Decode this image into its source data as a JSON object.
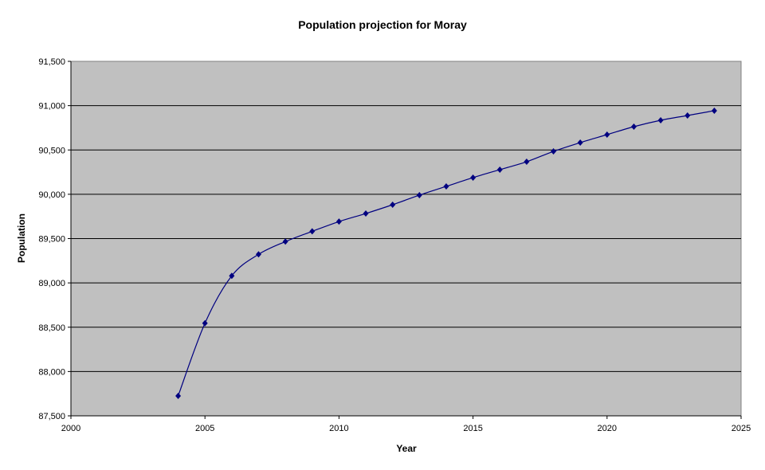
{
  "chart_data": {
    "type": "line",
    "title": "Population projection for Moray",
    "xlabel": "Year",
    "ylabel": "Population",
    "xlim": [
      2000,
      2025
    ],
    "ylim": [
      87500,
      91500
    ],
    "x_ticks": [
      "2000",
      "2005",
      "2010",
      "2015",
      "2020",
      "2025"
    ],
    "y_ticks": [
      "87,500",
      "88,000",
      "88,500",
      "89,000",
      "89,500",
      "90,000",
      "90,500",
      "91,000",
      "91,500"
    ],
    "grid": "horizontal",
    "legend": "none",
    "plot_background": "#c0c0c0",
    "series": [
      {
        "color": "#000080",
        "marker": "diamond",
        "smoothed": true,
        "x": [
          2004,
          2005,
          2006,
          2007,
          2008,
          2009,
          2010,
          2011,
          2012,
          2013,
          2014,
          2015,
          2016,
          2017,
          2018,
          2019,
          2020,
          2021,
          2022,
          2023,
          2024
        ],
        "y": [
          87725,
          88545,
          89080,
          89322,
          89466,
          89582,
          89692,
          89783,
          89882,
          89990,
          90089,
          90188,
          90278,
          90367,
          90484,
          90583,
          90673,
          90763,
          90835,
          90889,
          90943
        ]
      }
    ]
  }
}
